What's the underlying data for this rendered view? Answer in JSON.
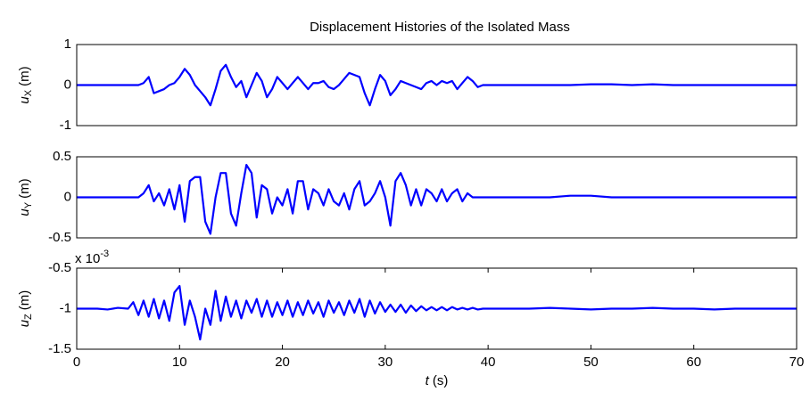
{
  "chart_data": [
    {
      "type": "line",
      "title": "Displacement Histories of the Isolated Mass",
      "ylabel": {
        "symbol": "u",
        "subscript": "X",
        "unit": "(m)"
      },
      "color": "#0000ff",
      "x": [
        0,
        1,
        2,
        3,
        4,
        5,
        5.5,
        6,
        6.5,
        7,
        7.5,
        8,
        8.5,
        9,
        9.5,
        10,
        10.5,
        11,
        11.5,
        12,
        12.5,
        13,
        13.5,
        14,
        14.5,
        15,
        15.5,
        16,
        16.5,
        17,
        17.5,
        18,
        18.5,
        19,
        19.5,
        20,
        20.5,
        21,
        21.5,
        22,
        22.5,
        23,
        23.5,
        24,
        24.5,
        25,
        25.5,
        26,
        26.5,
        27,
        27.5,
        28,
        28.5,
        29,
        29.5,
        30,
        30.5,
        31,
        31.5,
        32,
        32.5,
        33,
        33.5,
        34,
        34.5,
        35,
        35.5,
        36,
        36.5,
        37,
        37.5,
        38,
        38.5,
        39,
        39.5,
        40,
        42,
        44,
        46,
        48,
        50,
        52,
        54,
        56,
        58,
        60,
        62,
        64,
        66,
        68,
        70
      ],
      "values": [
        0,
        0,
        0,
        0,
        0,
        0,
        0,
        0,
        0.05,
        0.2,
        -0.2,
        -0.15,
        -0.1,
        0,
        0.05,
        0.2,
        0.4,
        0.25,
        0,
        -0.15,
        -0.3,
        -0.5,
        -0.1,
        0.35,
        0.5,
        0.2,
        -0.05,
        0.1,
        -0.3,
        0,
        0.3,
        0.1,
        -0.3,
        -0.1,
        0.2,
        0.05,
        -0.1,
        0.05,
        0.2,
        0.05,
        -0.1,
        0.05,
        0.05,
        0.1,
        -0.05,
        -0.1,
        0,
        0.15,
        0.3,
        0.25,
        0.2,
        -0.2,
        -0.5,
        -0.1,
        0.25,
        0.1,
        -0.25,
        -0.1,
        0.1,
        0.05,
        0,
        -0.05,
        -0.1,
        0.05,
        0.1,
        0,
        0.1,
        0.05,
        0.1,
        -0.1,
        0.05,
        0.2,
        0.1,
        -0.05,
        0,
        0,
        0,
        0,
        0,
        0,
        0.02,
        0.02,
        0,
        0.02,
        0,
        0,
        0,
        0,
        0,
        0,
        0
      ],
      "xlim": [
        0,
        70
      ],
      "ylim": [
        -1,
        1
      ],
      "yticks": [
        -1,
        0,
        1
      ]
    },
    {
      "type": "line",
      "ylabel": {
        "symbol": "u",
        "subscript": "Y",
        "unit": "(m)"
      },
      "color": "#0000ff",
      "x": [
        0,
        1,
        2,
        3,
        4,
        5,
        5.5,
        6,
        6.5,
        7,
        7.5,
        8,
        8.5,
        9,
        9.5,
        10,
        10.5,
        11,
        11.5,
        12,
        12.5,
        13,
        13.5,
        14,
        14.5,
        15,
        15.5,
        16,
        16.5,
        17,
        17.5,
        18,
        18.5,
        19,
        19.5,
        20,
        20.5,
        21,
        21.5,
        22,
        22.5,
        23,
        23.5,
        24,
        24.5,
        25,
        25.5,
        26,
        26.5,
        27,
        27.5,
        28,
        28.5,
        29,
        29.5,
        30,
        30.5,
        31,
        31.5,
        32,
        32.5,
        33,
        33.5,
        34,
        34.5,
        35,
        35.5,
        36,
        36.5,
        37,
        37.5,
        38,
        38.5,
        39,
        39.5,
        40,
        42,
        44,
        46,
        48,
        50,
        52,
        54,
        56,
        58,
        60,
        62,
        64,
        66,
        68,
        70
      ],
      "values": [
        0,
        0,
        0,
        0,
        0,
        0,
        0,
        0,
        0.05,
        0.15,
        -0.05,
        0.05,
        -0.1,
        0.1,
        -0.15,
        0.15,
        -0.3,
        0.2,
        0.25,
        0.25,
        -0.3,
        -0.45,
        0,
        0.3,
        0.3,
        -0.2,
        -0.35,
        0.05,
        0.4,
        0.3,
        -0.25,
        0.15,
        0.1,
        -0.2,
        0,
        -0.1,
        0.1,
        -0.2,
        0.2,
        0.2,
        -0.15,
        0.1,
        0.05,
        -0.1,
        0.1,
        -0.05,
        -0.1,
        0.05,
        -0.15,
        0.1,
        0.2,
        -0.1,
        -0.05,
        0.05,
        0.2,
        0,
        -0.35,
        0.2,
        0.3,
        0.15,
        -0.1,
        0.1,
        -0.1,
        0.1,
        0.05,
        -0.05,
        0.1,
        -0.05,
        0.05,
        0.1,
        -0.05,
        0.05,
        0,
        0,
        0,
        0,
        0,
        0,
        0,
        0.02,
        0.02,
        0,
        0,
        0,
        0,
        0,
        0,
        0,
        0,
        0,
        0
      ],
      "xlim": [
        0,
        70
      ],
      "ylim": [
        -0.5,
        0.5
      ],
      "yticks": [
        -0.5,
        0,
        0.5
      ]
    },
    {
      "type": "line",
      "ylabel": {
        "symbol": "u",
        "subscript": "Z",
        "unit": "(m)"
      },
      "xlabel": {
        "symbol": "t",
        "unit": "(s)"
      },
      "y_multiplier": {
        "base": "x 10",
        "exponent": "-3"
      },
      "color": "#0000ff",
      "x": [
        0,
        1,
        2,
        3,
        4,
        5,
        5.5,
        6,
        6.5,
        7,
        7.5,
        8,
        8.5,
        9,
        9.5,
        10,
        10.5,
        11,
        11.5,
        12,
        12.5,
        13,
        13.5,
        14,
        14.5,
        15,
        15.5,
        16,
        16.5,
        17,
        17.5,
        18,
        18.5,
        19,
        19.5,
        20,
        20.5,
        21,
        21.5,
        22,
        22.5,
        23,
        23.5,
        24,
        24.5,
        25,
        25.5,
        26,
        26.5,
        27,
        27.5,
        28,
        28.5,
        29,
        29.5,
        30,
        30.5,
        31,
        31.5,
        32,
        32.5,
        33,
        33.5,
        34,
        34.5,
        35,
        35.5,
        36,
        36.5,
        37,
        37.5,
        38,
        38.5,
        39,
        39.5,
        40,
        42,
        44,
        46,
        48,
        50,
        52,
        54,
        56,
        58,
        60,
        62,
        64,
        66,
        68,
        70
      ],
      "values": [
        -1,
        -1,
        -1,
        -1.01,
        -0.99,
        -1,
        -0.92,
        -1.08,
        -0.9,
        -1.1,
        -0.88,
        -1.12,
        -0.9,
        -1.15,
        -0.8,
        -0.72,
        -1.2,
        -0.9,
        -1.1,
        -1.38,
        -1.0,
        -1.2,
        -0.78,
        -1.15,
        -0.85,
        -1.1,
        -0.9,
        -1.12,
        -0.9,
        -1.05,
        -0.88,
        -1.1,
        -0.9,
        -1.1,
        -0.92,
        -1.08,
        -0.9,
        -1.1,
        -0.92,
        -1.08,
        -0.9,
        -1.06,
        -0.92,
        -1.1,
        -0.9,
        -1.05,
        -0.92,
        -1.08,
        -0.9,
        -1.05,
        -0.88,
        -1.1,
        -0.9,
        -1.06,
        -0.92,
        -1.04,
        -0.95,
        -1.04,
        -0.95,
        -1.05,
        -0.96,
        -1.03,
        -0.97,
        -1.02,
        -0.98,
        -1.02,
        -0.98,
        -1.02,
        -0.98,
        -1.01,
        -0.99,
        -1.01,
        -0.99,
        -1.01,
        -1,
        -1,
        -1,
        -1,
        -0.99,
        -1,
        -1.01,
        -1,
        -1,
        -0.99,
        -1,
        -1,
        -1.01,
        -1,
        -1,
        -1,
        -1
      ],
      "xlim": [
        0,
        70
      ],
      "ylim": [
        -1.5,
        -0.5
      ],
      "yticks": [
        -1.5,
        -1,
        -0.5
      ],
      "xticks": [
        0,
        10,
        20,
        30,
        40,
        50,
        60,
        70
      ]
    }
  ]
}
